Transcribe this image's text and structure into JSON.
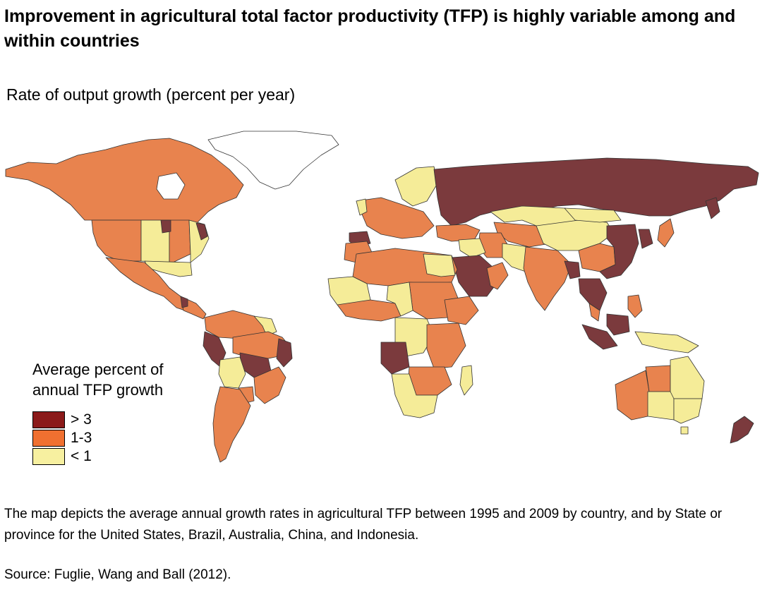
{
  "title": "Improvement in agricultural total factor productivity (TFP) is highly variable among and within countries",
  "subtitle": "Rate of output growth (percent per year)",
  "legend": {
    "title_line1": "Average percent of",
    "title_line2": "annual TFP growth",
    "items": [
      {
        "label": "> 3",
        "color": "#7b3a3d",
        "swatch_color": "#8b1a1a"
      },
      {
        "label": "1-3",
        "color": "#e8834e",
        "swatch_color": "#f07030"
      },
      {
        "label": "< 1",
        "color": "#f5ec98",
        "swatch_color": "#f7f0a0"
      }
    ]
  },
  "note": "The map depicts the average annual growth rates in agricultural TFP between 1995 and 2009 by country, and by State or province for the United States, Brazil, Australia, China, and Indonesia.",
  "source": "Source: Fuglie, Wang and Ball (2012)."
}
